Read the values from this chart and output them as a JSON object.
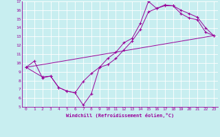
{
  "xlabel": "Windchill (Refroidissement éolien,°C)",
  "bg_color": "#c8eef0",
  "grid_color": "#ffffff",
  "line_color": "#990099",
  "xlim": [
    -0.5,
    23.5
  ],
  "ylim": [
    5,
    17
  ],
  "xticks": [
    0,
    1,
    2,
    3,
    4,
    5,
    6,
    7,
    8,
    9,
    10,
    11,
    12,
    13,
    14,
    15,
    16,
    17,
    18,
    19,
    20,
    21,
    22,
    23
  ],
  "yticks": [
    5,
    6,
    7,
    8,
    9,
    10,
    11,
    12,
    13,
    14,
    15,
    16,
    17
  ],
  "line1_x": [
    0,
    1,
    2,
    3,
    4,
    5,
    6,
    7,
    8,
    9,
    10,
    11,
    12,
    13,
    14,
    15,
    16,
    17,
    18,
    19,
    20,
    21,
    22,
    23
  ],
  "line1_y": [
    9.5,
    10.2,
    8.3,
    8.5,
    7.2,
    6.8,
    6.6,
    7.9,
    8.8,
    9.5,
    9.8,
    10.5,
    11.5,
    12.5,
    13.8,
    15.8,
    16.2,
    16.5,
    16.5,
    15.6,
    15.1,
    14.9,
    13.5,
    13.1
  ],
  "line2_x": [
    0,
    2,
    3,
    4,
    5,
    6,
    7,
    8,
    9,
    10,
    11,
    12,
    13,
    14,
    15,
    16,
    17,
    18,
    19,
    20,
    21,
    22,
    23
  ],
  "line2_y": [
    9.5,
    8.4,
    8.5,
    7.2,
    6.8,
    6.6,
    5.2,
    6.5,
    9.5,
    10.5,
    11.2,
    12.3,
    12.8,
    14.5,
    17.0,
    16.2,
    16.6,
    16.5,
    16.0,
    15.6,
    15.2,
    14.0,
    13.1
  ],
  "line3_x": [
    0,
    23
  ],
  "line3_y": [
    9.5,
    13.1
  ],
  "xlabel_fontsize": 5.0,
  "tick_fontsize": 4.5,
  "marker_size": 3,
  "lw": 0.7
}
